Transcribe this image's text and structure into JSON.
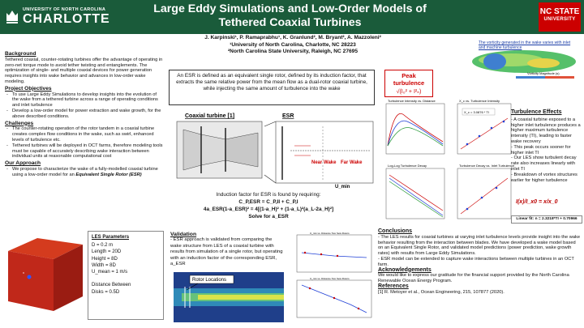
{
  "header": {
    "title": "Large Eddy Simulations and Low-Order Models of Tethered Coaxial Turbines",
    "logo_left_university": "UNIVERSITY OF NORTH CAROLINA",
    "logo_left_campus": "CHARLOTTE",
    "logo_right_line1": "NC STATE",
    "logo_right_line2": "UNIVERSITY",
    "colors": {
      "band": "#1a5b3a",
      "ncstate": "#cc0000"
    }
  },
  "authors": {
    "names": "J. Karpinski¹, P. Ramaprabhu¹, K. Granlund², M. Bryant², A. Mazzoleni²",
    "aff1": "¹University of North Carolina, Charlotte, NC 28223",
    "aff2": "²North Carolina State University, Raleigh, NC 27695"
  },
  "left": {
    "background_h": "Background",
    "background": "Tethered coaxial, counter-rotating turbines offer the advantage of operating in zero-net torque mode to avoid tether twisting and entanglements. The optimization of single- and multiple coaxial devices for power generation requires insights into wake behavior and advances in low-order wake modeling.",
    "objectives_h": "Project Objectives",
    "objectives": [
      "To use Large Eddy Simulations to develop insights into the evolution of the wake from a tethered turbine across a range of operating conditions and inlet turbulence",
      "Develop a low-order model for power extraction and wake growth, for the above described conditions."
    ],
    "challenges_h": "Challenges",
    "challenges": [
      "The counter-rotating operation of the rotor tandem in a coaxial turbine creates complex flow conditions in the wake, such as swirl, enhanced levels of turbulence etc.",
      "Tethered turbines will be deployed in OCT farms, therefore modeling tools must be capable of accurately describing wake interaction between individual units at reasonable computational cost"
    ],
    "approach_h": "Our Approach",
    "approach_pre": "We propose to characterize the wake of a fully-modelled coaxial turbine using a low-order model for an ",
    "approach_em": "Equivalent Single Rotor (ESR)",
    "les_h": "LES Parameters",
    "les_params": [
      "D = 0.2 m",
      "Length = 20D",
      "Height = 8D",
      "Width = 8D",
      "U_mean = 1 m/s",
      "",
      "Distance Between",
      "Disks = 0.5D"
    ]
  },
  "middle": {
    "esr_def": "An ESR is defined as an equivalent single rotor, defined by its induction factor, that extracts the same relative power from the mean flow as a dual-rotor coaxial turbine, while injecting the same amount of turbulence into the wake",
    "coaxial_label": "Coaxial turbine [1]",
    "esr_label": "ESR",
    "near_wake": "Near Wake",
    "far_wake": "Far Wake",
    "u_min": "U_min",
    "induction_text": "Induction factor for ESR is found by requiring:",
    "eq1": "C_P,ESR = C_P,II + C_P,I",
    "eq2": "4a_ESR(1-a_ESR)² = 4[(1-a_H)² + (1-a_L)²(a_L-2a_H)²]",
    "solve": "Solve for a_ESR",
    "validation_h": "Validation",
    "validation": "- ESR approach is validated from comparing the wake structure from LES of a coaxial turbine with results from simulation of a single rotor, but operating with an induction factor of the corresponding ESR, a_ESR",
    "rotor_locations": "Rotor Locations",
    "valplot_title1": "U_min vs. Distance Two Sets Rotors",
    "valplot_title2": "U_min vs. Distance Two Sets Rotors"
  },
  "right": {
    "vorticity_caption": "The vorticity generated in the wake varies with inlet and machine turbulence",
    "colorbar_label": "Vorticity Magnitude (s)",
    "peak_title_line1": "Peak",
    "peak_title_line2": "turbulence",
    "peak_formula": "√(I₀² + I²ₙ)",
    "plot_titles": [
      "Turbulence Intensity vs. Distance",
      "X_c vs. Turbulence Intensity",
      "Log-Log Turbulence Decay",
      "Turbulence Decay vs. Inlet Turbulence"
    ],
    "fit_label": "X_c = 3.0876 * TI",
    "effects_h": "Turbulence Effects",
    "effects": [
      "- A coaxial turbine exposed to a higher inlet turbulence produces a higher maximum turbulence intensity (TI), leading to faster wake recovery",
      "- This peak occurs sooner for higher inlet TI",
      "- Our LES show turbulent decay rate also increases linearly with inlet TI",
      "- Breakdown of vortex structures earlier for higher turbulence"
    ],
    "ratio_formula": "I(x)/I_x0 = x/x_0",
    "linear_fit": "Linear fit: n = 2.3218*TI + 0.70966",
    "conclusions_h": "Conclusions",
    "conclusions": [
      "- The LES results for coaxial turbines at varying inlet turbulence levels provide insight into the wake behavior resulting from the interaction between blades. We have developed a wake model based on an Equivalent Single Rotor, and validated model predictions (power prediction, wake growth rates) with results from Large Eddy Simulations.",
      "- ESR model can be extended to capture wake interactions between multiple turbines in an OCT farm."
    ],
    "ack_h": "Acknowledgements",
    "ack": "We would like to express our gratitude for the financial support provided by the North Carolina Renewable Ocean Energy Program.",
    "ref_h": "References",
    "ref": "[1] R. Metoyer et al., Ocean Engineering, 215, 107877 (2020)."
  }
}
